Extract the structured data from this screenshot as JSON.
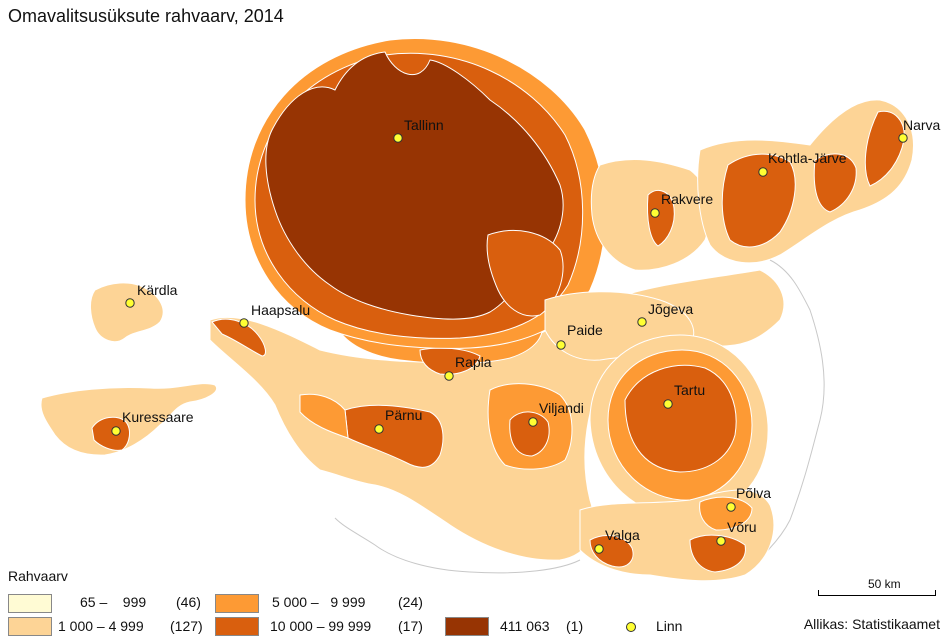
{
  "title": "Omavalitsusüksute rahvaarv, 2014",
  "colors": {
    "c1": "#fffbd4",
    "c2": "#fdd496",
    "c3": "#fd9a34",
    "c4": "#d95f0e",
    "c5": "#973403",
    "land_outline": "#c8c8c8",
    "city_fill": "#ffff33"
  },
  "legend": {
    "title": "Rahvaarv",
    "classes": [
      {
        "range": "65 –    999",
        "count": "(46)",
        "color_key": "c1"
      },
      {
        "range": "1 000 – 4 999",
        "count": "(127)",
        "color_key": "c2"
      },
      {
        "range": "5 000 –   9 999",
        "count": "(24)",
        "color_key": "c3"
      },
      {
        "range": "10 000 – 99 999",
        "count": "(17)",
        "color_key": "c4"
      },
      {
        "range": "411 063",
        "count": "(1)",
        "color_key": "c5"
      }
    ],
    "city_label": "Linn"
  },
  "cities": [
    {
      "name": "Tallinn"
    },
    {
      "name": "Narva"
    },
    {
      "name": "Kohtla-Järve"
    },
    {
      "name": "Rakvere"
    },
    {
      "name": "Kärdla"
    },
    {
      "name": "Haapsalu"
    },
    {
      "name": "Jõgeva"
    },
    {
      "name": "Paide"
    },
    {
      "name": "Rapla"
    },
    {
      "name": "Tartu"
    },
    {
      "name": "Kuressaare"
    },
    {
      "name": "Pärnu"
    },
    {
      "name": "Viljandi"
    },
    {
      "name": "Põlva"
    },
    {
      "name": "Valga"
    },
    {
      "name": "Võru"
    }
  ],
  "scale": {
    "label": "50 km"
  },
  "source": "Allikas: Statistikaamet"
}
